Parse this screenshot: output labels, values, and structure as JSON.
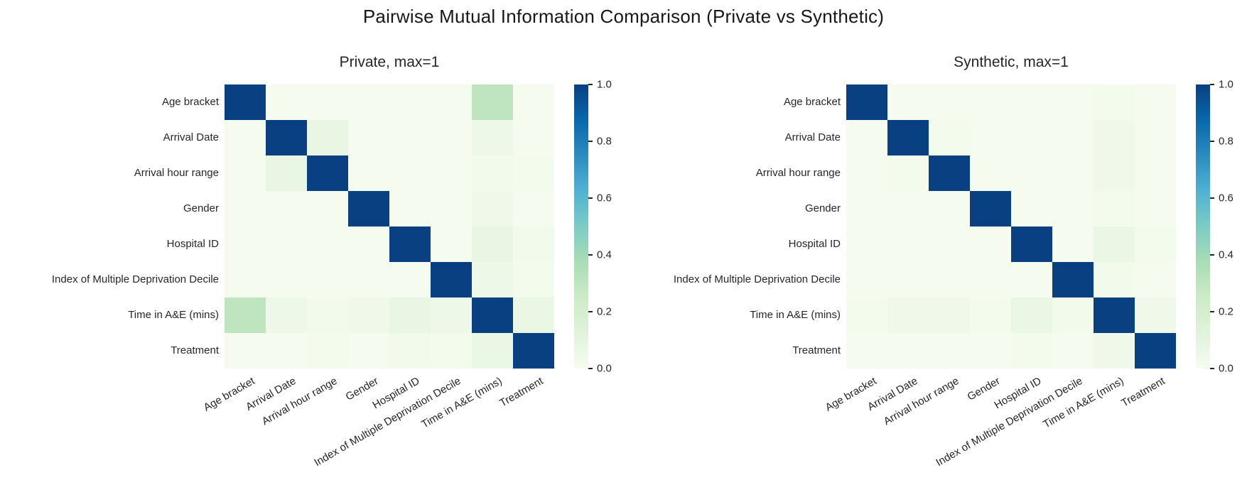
{
  "figure_title": "Pairwise Mutual Information Comparison (Private vs Synthetic)",
  "labels": [
    "Age bracket",
    "Arrival Date",
    "Arrival hour range",
    "Gender",
    "Hospital ID",
    "Index of Multiple Deprivation Decile",
    "Time in A&E (mins)",
    "Treatment"
  ],
  "colorbar": {
    "tick_labels": [
      "1.0",
      "0.8",
      "0.6",
      "0.4",
      "0.2",
      "0.0"
    ],
    "vmin": 0.0,
    "vmax": 1.0
  },
  "colormap": {
    "name": "GnBu",
    "diagonal_color": "#084081",
    "background_color": "#f5fbef",
    "stops": [
      [
        0.0,
        "#f7fcf0"
      ],
      [
        0.125,
        "#e0f3db"
      ],
      [
        0.25,
        "#ccebc5"
      ],
      [
        0.375,
        "#a8ddb5"
      ],
      [
        0.5,
        "#7bccc4"
      ],
      [
        0.625,
        "#4eb3d3"
      ],
      [
        0.75,
        "#2b8cbe"
      ],
      [
        0.875,
        "#0868ac"
      ],
      [
        1.0,
        "#084081"
      ]
    ]
  },
  "chart_data": [
    {
      "type": "heatmap",
      "title": "Private, max=1",
      "categories": [
        "Age bracket",
        "Arrival Date",
        "Arrival hour range",
        "Gender",
        "Hospital ID",
        "Index of Multiple Deprivation Decile",
        "Time in A&E (mins)",
        "Treatment"
      ],
      "vmin": 0.0,
      "vmax": 1.0,
      "colormap": "GnBu",
      "legend_position": "colorbar-right",
      "matrix": [
        [
          1.0,
          0.01,
          0.01,
          0.01,
          0.01,
          0.01,
          0.3,
          0.01
        ],
        [
          0.01,
          1.0,
          0.08,
          0.01,
          0.01,
          0.01,
          0.05,
          0.01
        ],
        [
          0.01,
          0.08,
          1.0,
          0.01,
          0.01,
          0.01,
          0.03,
          0.02
        ],
        [
          0.01,
          0.01,
          0.01,
          1.0,
          0.01,
          0.01,
          0.04,
          0.01
        ],
        [
          0.01,
          0.01,
          0.01,
          0.01,
          1.0,
          0.01,
          0.08,
          0.03
        ],
        [
          0.01,
          0.01,
          0.01,
          0.01,
          0.01,
          1.0,
          0.05,
          0.02
        ],
        [
          0.3,
          0.05,
          0.03,
          0.04,
          0.08,
          0.05,
          1.0,
          0.07
        ],
        [
          0.01,
          0.01,
          0.02,
          0.01,
          0.03,
          0.02,
          0.07,
          1.0
        ]
      ]
    },
    {
      "type": "heatmap",
      "title": "Synthetic, max=1",
      "categories": [
        "Age bracket",
        "Arrival Date",
        "Arrival hour range",
        "Gender",
        "Hospital ID",
        "Index of Multiple Deprivation Decile",
        "Time in A&E (mins)",
        "Treatment"
      ],
      "vmin": 0.0,
      "vmax": 1.0,
      "colormap": "GnBu",
      "legend_position": "colorbar-right",
      "matrix": [
        [
          1.0,
          0.01,
          0.01,
          0.01,
          0.01,
          0.01,
          0.02,
          0.01
        ],
        [
          0.01,
          1.0,
          0.02,
          0.01,
          0.01,
          0.01,
          0.04,
          0.01
        ],
        [
          0.01,
          0.02,
          1.0,
          0.01,
          0.01,
          0.01,
          0.04,
          0.01
        ],
        [
          0.01,
          0.01,
          0.01,
          1.0,
          0.01,
          0.01,
          0.02,
          0.01
        ],
        [
          0.01,
          0.01,
          0.01,
          0.01,
          1.0,
          0.01,
          0.07,
          0.02
        ],
        [
          0.01,
          0.01,
          0.01,
          0.01,
          0.01,
          1.0,
          0.03,
          0.01
        ],
        [
          0.02,
          0.04,
          0.04,
          0.02,
          0.07,
          0.03,
          1.0,
          0.04
        ],
        [
          0.01,
          0.01,
          0.01,
          0.01,
          0.02,
          0.01,
          0.04,
          1.0
        ]
      ]
    }
  ]
}
